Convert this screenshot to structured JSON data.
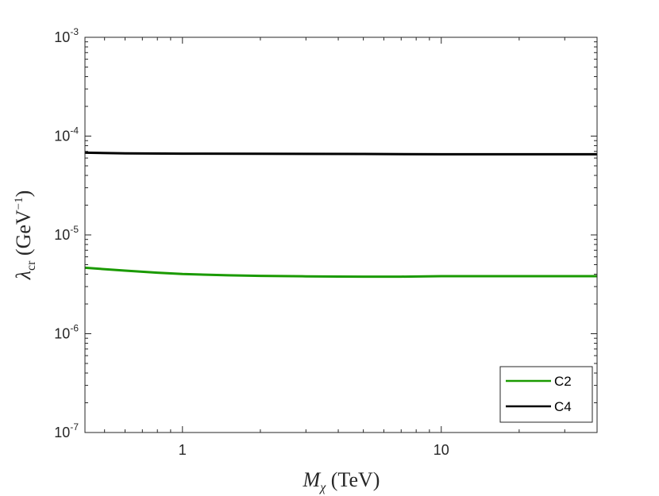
{
  "chart_data": {
    "type": "line",
    "title": "",
    "xlabel": {
      "main": "M",
      "sub": "χ",
      "unit": " (TeV)"
    },
    "ylabel": {
      "main": "λ",
      "sub": "cr",
      "unit_pre": " (GeV",
      "unit_sup": "−1",
      "unit_post": ")"
    },
    "x_scale": "log",
    "y_scale": "log",
    "xlim": [
      0.42,
      40
    ],
    "ylim": [
      1e-07,
      0.001
    ],
    "x_ticks": [
      {
        "value": 1,
        "label": "1"
      },
      {
        "value": 10,
        "label": "10"
      }
    ],
    "y_ticks": [
      {
        "value": 1e-07,
        "base": "10",
        "exp": "-7"
      },
      {
        "value": 1e-06,
        "base": "10",
        "exp": "-6"
      },
      {
        "value": 1e-05,
        "base": "10",
        "exp": "-5"
      },
      {
        "value": 0.0001,
        "base": "10",
        "exp": "-4"
      },
      {
        "value": 0.001,
        "base": "10",
        "exp": "-3"
      }
    ],
    "grid": false,
    "legend_position": "bottom-right",
    "series": [
      {
        "name": "C2",
        "color": "#1a9a00",
        "x": [
          0.42,
          0.6,
          0.8,
          1.0,
          1.5,
          2.0,
          3.0,
          4.0,
          5.0,
          7.0,
          10.0,
          20.0,
          40.0
        ],
        "y": [
          4.65e-06,
          4.35e-06,
          4.15e-06,
          4.02e-06,
          3.9e-06,
          3.85e-06,
          3.81e-06,
          3.79e-06,
          3.78e-06,
          3.78e-06,
          3.82e-06,
          3.82e-06,
          3.82e-06
        ]
      },
      {
        "name": "C4",
        "color": "#000000",
        "x": [
          0.42,
          0.6,
          1.0,
          2.0,
          5.0,
          10.0,
          20.0,
          40.0
        ],
        "y": [
          6.8e-05,
          6.7e-05,
          6.65e-05,
          6.62e-05,
          6.6e-05,
          6.55e-05,
          6.55e-05,
          6.55e-05
        ]
      }
    ]
  }
}
